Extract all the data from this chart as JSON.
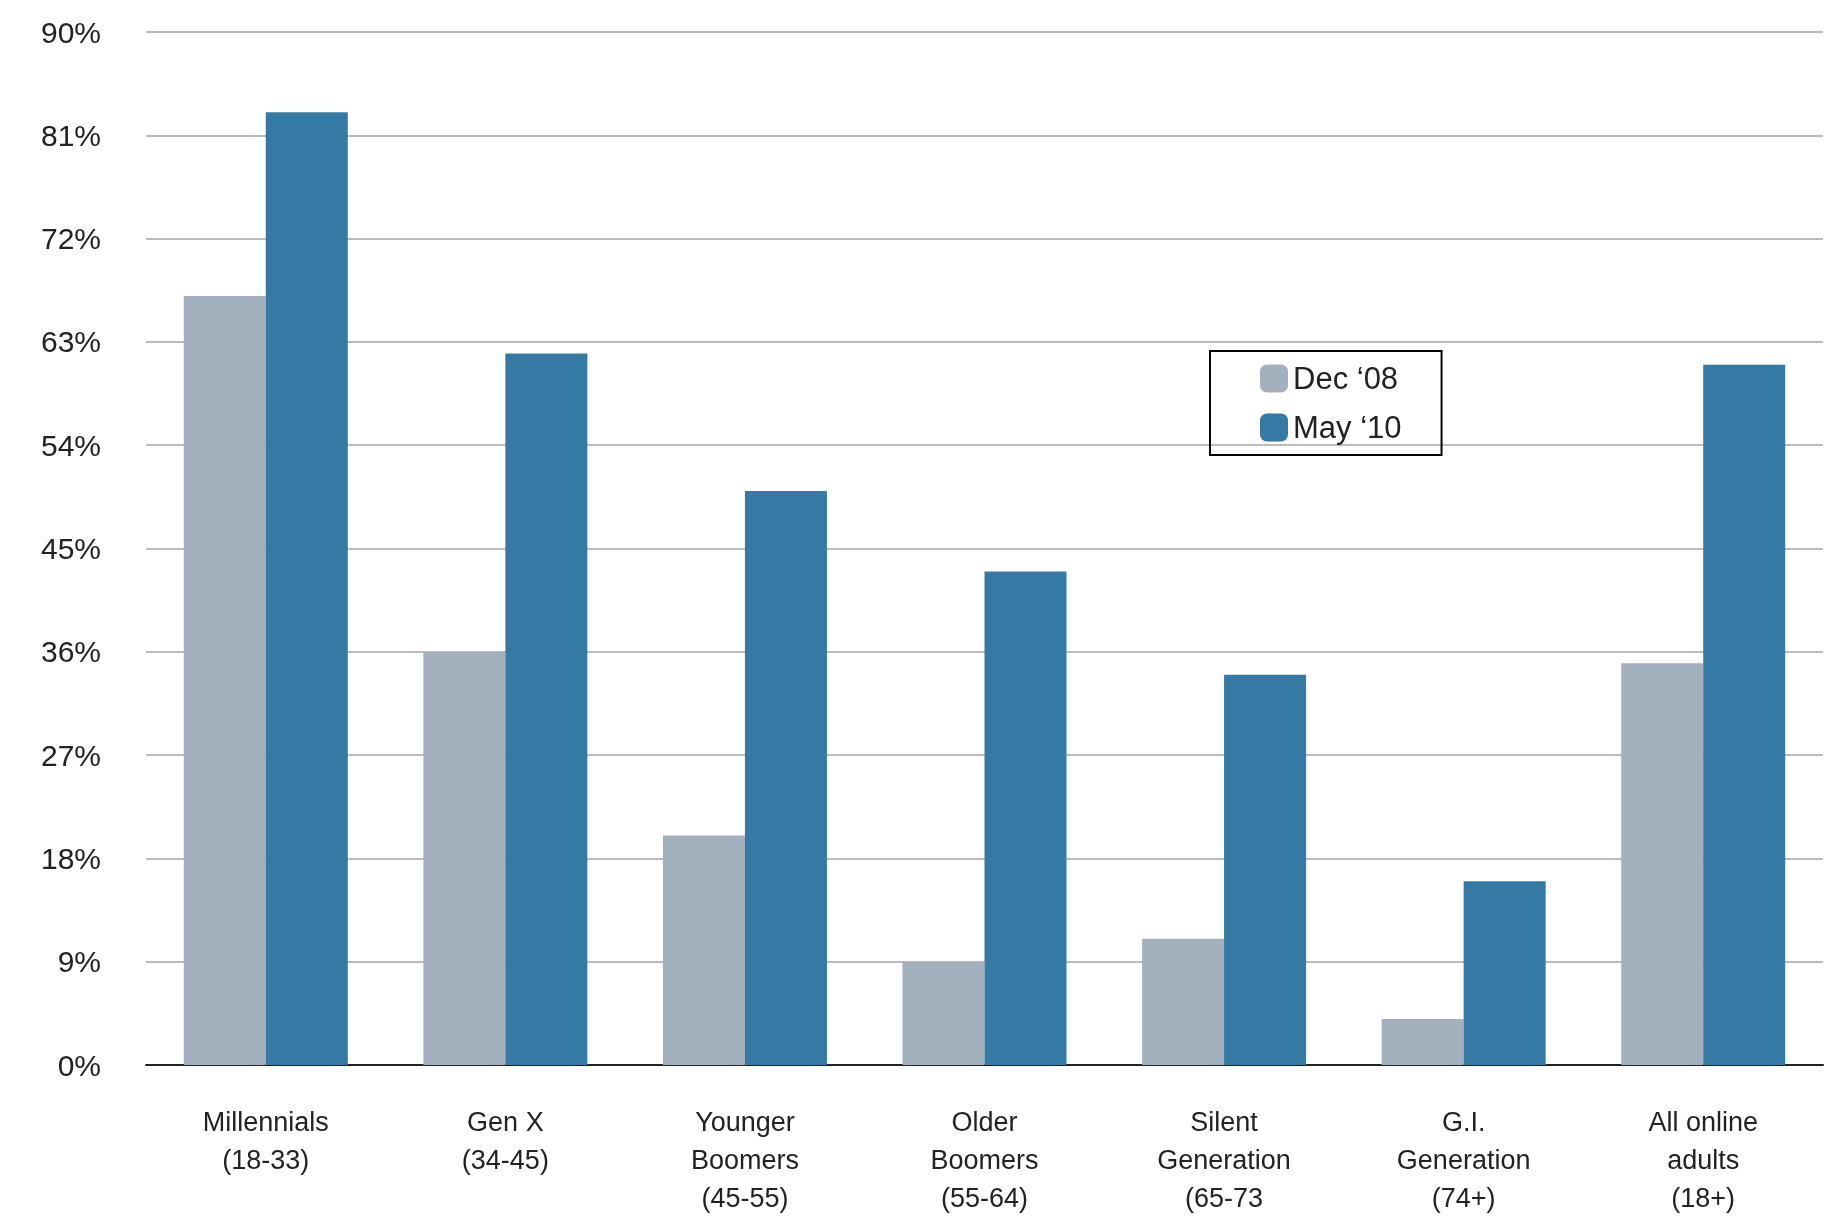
{
  "chart_data": {
    "type": "bar",
    "categories": [
      "Millennials\n(18-33)",
      "Gen X\n(34-45)",
      "Younger\nBoomers\n(45-55)",
      "Older\nBoomers\n(55-64)",
      "Silent\nGeneration\n(65-73",
      "G.I.\nGeneration\n(74+)",
      "All online\nadults\n(18+)"
    ],
    "series": [
      {
        "name": "Dec ‘08",
        "color": "#a3b1bf",
        "values": [
          67,
          36,
          20,
          9,
          11,
          4,
          35
        ]
      },
      {
        "name": "May ‘10",
        "color": "#347aa5",
        "values": [
          83,
          62,
          50,
          43,
          34,
          16,
          61
        ]
      }
    ],
    "ylim": [
      0,
      90
    ],
    "yticks": [
      {
        "value": 0,
        "label": "0%"
      },
      {
        "value": 9,
        "label": "9%"
      },
      {
        "value": 18,
        "label": "18%"
      },
      {
        "value": 27,
        "label": "27%"
      },
      {
        "value": 36,
        "label": "36%"
      },
      {
        "value": 45,
        "label": "45%"
      },
      {
        "value": 54,
        "label": "54%"
      },
      {
        "value": 63,
        "label": "63%"
      },
      {
        "value": 72,
        "label": "72%"
      },
      {
        "value": 81,
        "label": "81%"
      },
      {
        "value": 90,
        "label": "90%"
      }
    ],
    "grid": true,
    "legend": "top right"
  }
}
